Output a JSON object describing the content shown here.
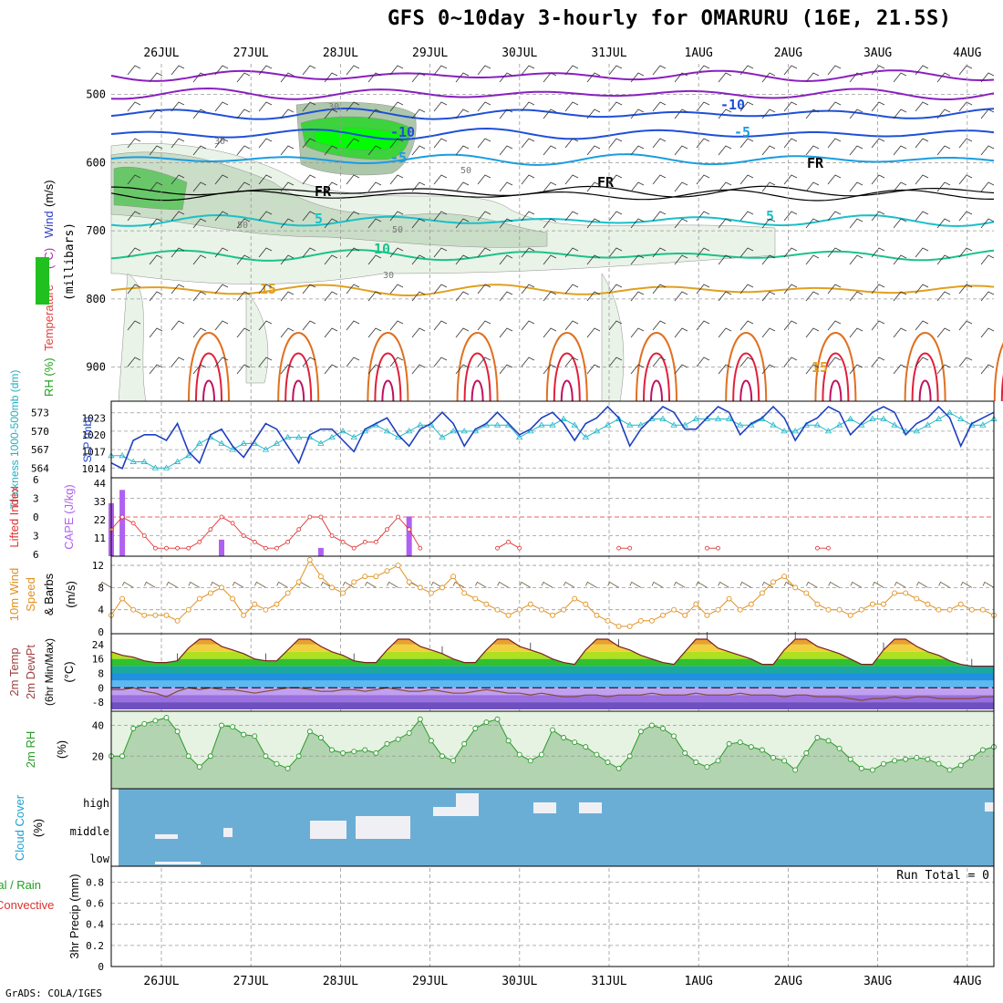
{
  "title": "GFS 0~10day 3-hourly for OMARURU (16E, 21.5S)",
  "credit": "GrADS: COLA/IGES",
  "dates": [
    "26JUL",
    "27JUL",
    "28JUL",
    "29JUL",
    "30JUL",
    "31JUL",
    "1AUG",
    "2AUG",
    "3AUG",
    "4AUG"
  ],
  "colors": {
    "temp_purple": "#8a1fc0",
    "temp_blue": "#1f4fd8",
    "temp_lightblue": "#1a9de0",
    "temp_cyan": "#19c0c8",
    "temp_teal": "#1bc28a",
    "temp_orange": "#e0a020",
    "temp_darkorange": "#e07020",
    "temp_red": "#e0203a",
    "slp": "#1f3fc0",
    "thickness": "#22b8c8",
    "li": "#e03030",
    "cape": "#b060f0",
    "wind": "#e09020",
    "rh2m": "#2a9a2a",
    "rh_fill": "#8fc08f",
    "cloud": "#6aaed6",
    "grid": "#999999"
  },
  "chart_data": [
    {
      "type": "heatmap",
      "name": "upper",
      "y_label": "Temperature (°C)Wind (m/s)",
      "y_label_parts": [
        {
          "text": "RH (%)",
          "color": "#20a020"
        },
        {
          "text": "Temperature",
          "color": "#e04040"
        },
        {
          "text": "(°C)",
          "color": "#b030b0"
        },
        {
          "text": "Wind",
          "color": "#3040c0"
        },
        {
          "text": "(m/s)",
          "color": "#000000"
        }
      ],
      "axis_label": "(millibars)",
      "y_ticks": [
        500,
        600,
        700,
        800,
        900
      ],
      "contour_labels": [
        "-10",
        "-10",
        "-5",
        "-5",
        "FR",
        "FR",
        "FR",
        "5",
        "5",
        "10",
        "15",
        "15",
        "30",
        "30",
        "50",
        "50",
        "50",
        "30"
      ]
    },
    {
      "type": "line",
      "name": "slp_thickness",
      "ylabel_left": "Thickness 1000-500mb (dm)",
      "ylabel_right": "SLP (mb)",
      "left_ticks": [
        564,
        567,
        570,
        573
      ],
      "right_ticks": [
        1014,
        1017,
        1020,
        1023
      ],
      "series": [
        {
          "name": "SLP",
          "values": [
            1015,
            1014,
            1019,
            1020,
            1020,
            1019,
            1022,
            1017,
            1015,
            1020,
            1021,
            1018,
            1016,
            1019,
            1022,
            1021,
            1018,
            1015,
            1020,
            1021,
            1021,
            1019,
            1017,
            1021,
            1022,
            1023,
            1020,
            1018,
            1021,
            1022,
            1024,
            1022,
            1018,
            1021,
            1022,
            1024,
            1022,
            1020,
            1021,
            1023,
            1024,
            1022,
            1019,
            1022,
            1023,
            1025,
            1023,
            1018,
            1021,
            1023,
            1025,
            1024,
            1021,
            1021,
            1023,
            1025,
            1024,
            1020,
            1022,
            1023,
            1025,
            1023,
            1019,
            1022,
            1023,
            1025,
            1024,
            1020,
            1022,
            1024,
            1025,
            1024,
            1020,
            1022,
            1023,
            1025,
            1023,
            1018,
            1022,
            1023,
            1024
          ]
        },
        {
          "name": "Thickness",
          "values": [
            566,
            566,
            565,
            565,
            564,
            564,
            565,
            566,
            568,
            569,
            568,
            567,
            568,
            568,
            567,
            568,
            569,
            569,
            569,
            568,
            569,
            570,
            569,
            570,
            571,
            570,
            569,
            570,
            571,
            571,
            569,
            570,
            570,
            570,
            571,
            571,
            571,
            569,
            570,
            571,
            571,
            572,
            571,
            569,
            570,
            571,
            572,
            571,
            571,
            572,
            572,
            571,
            571,
            572,
            572,
            572,
            572,
            571,
            571,
            572,
            571,
            570,
            570,
            571,
            571,
            570,
            571,
            572,
            571,
            572,
            572,
            571,
            570,
            570,
            571,
            572,
            573,
            572,
            571,
            571,
            572
          ]
        }
      ]
    },
    {
      "type": "bar",
      "name": "li_cape",
      "ylabel_left": "Lifted Index",
      "ylabel_right": "CAPE (J/kg)",
      "li_ticks": [
        6,
        3,
        0,
        -3,
        -6
      ],
      "cape_ticks": [
        11,
        22,
        33,
        44
      ],
      "li_values": [
        2,
        0,
        1,
        3,
        5,
        5,
        5,
        5,
        4,
        2,
        0,
        1,
        3,
        4,
        5,
        5,
        4,
        2,
        0,
        0,
        3,
        4,
        5,
        4,
        4,
        2,
        0,
        2,
        5,
        6,
        6,
        6,
        6,
        6,
        6,
        5,
        4,
        5,
        6,
        6,
        6,
        6,
        6,
        6,
        6,
        6,
        5,
        5,
        6,
        6,
        6,
        6,
        6,
        6,
        5,
        5,
        6,
        6,
        6,
        6,
        6,
        6,
        6,
        6,
        5,
        5,
        6,
        6,
        6,
        6,
        6,
        6,
        6,
        6,
        6,
        6,
        6,
        6,
        6,
        6,
        6
      ],
      "cape_values": [
        32,
        40,
        0,
        0,
        0,
        0,
        0,
        0,
        0,
        0,
        10,
        0,
        0,
        0,
        0,
        0,
        0,
        0,
        0,
        5,
        0,
        0,
        0,
        0,
        0,
        0,
        0,
        24,
        0,
        0,
        0,
        0,
        0,
        0,
        0,
        0,
        0,
        0,
        0,
        0,
        0,
        0,
        0,
        0,
        0,
        0,
        0,
        0,
        0,
        0,
        0,
        0,
        0,
        0,
        0,
        0,
        0,
        0,
        0,
        0,
        0,
        0,
        0,
        0,
        0,
        0,
        0,
        0,
        0,
        0,
        0,
        0,
        0,
        0,
        0,
        0,
        0,
        0,
        0,
        0,
        0
      ]
    },
    {
      "type": "line",
      "name": "wind10m",
      "ylabel": "10m Wind Speed & Barbs (m/s)",
      "y_ticks": [
        0,
        4,
        8,
        12
      ],
      "values": [
        3,
        6,
        4,
        3,
        3,
        3,
        2,
        4,
        6,
        7,
        8,
        6,
        3,
        5,
        4,
        5,
        7,
        9,
        13,
        10,
        8,
        7,
        9,
        10,
        10,
        11,
        12,
        9,
        8,
        7,
        8,
        10,
        7,
        6,
        5,
        4,
        3,
        4,
        5,
        4,
        3,
        4,
        6,
        5,
        3,
        2,
        1,
        1,
        2,
        2,
        3,
        4,
        3,
        5,
        3,
        4,
        6,
        4,
        5,
        7,
        9,
        10,
        8,
        7,
        5,
        4,
        4,
        3,
        4,
        5,
        5,
        7,
        7,
        6,
        5,
        4,
        4,
        5,
        4,
        4,
        3
      ]
    },
    {
      "type": "area",
      "name": "temp2m",
      "ylabel": "2m Temp 2m DewPt (6hr Min/Max) (°C)",
      "y_ticks": [
        -8,
        0,
        8,
        16,
        24
      ],
      "temp_values": [
        20,
        18,
        17,
        15,
        14,
        14,
        15,
        22,
        27,
        27,
        23,
        21,
        19,
        16,
        15,
        15,
        21,
        27,
        27,
        23,
        20,
        18,
        15,
        14,
        14,
        21,
        27,
        27,
        23,
        21,
        19,
        16,
        14,
        14,
        21,
        27,
        27,
        23,
        21,
        19,
        16,
        14,
        13,
        21,
        27,
        27,
        23,
        21,
        18,
        16,
        14,
        13,
        20,
        27,
        27,
        22,
        20,
        18,
        16,
        13,
        13,
        21,
        27,
        27,
        23,
        21,
        19,
        16,
        13,
        13,
        21,
        27,
        27,
        23,
        20,
        18,
        15,
        13,
        12,
        12,
        12
      ],
      "dewpt_values": [
        -1,
        -1,
        0,
        -2,
        -3,
        -5,
        -2,
        0,
        -1,
        0,
        -1,
        -1,
        -2,
        -3,
        -2,
        -1,
        0,
        0,
        -1,
        -2,
        -2,
        -1,
        -1,
        -2,
        -1,
        0,
        -1,
        -2,
        -2,
        -1,
        -2,
        -3,
        -3,
        -2,
        -1,
        -2,
        -3,
        -3,
        -4,
        -3,
        -4,
        -5,
        -5,
        -4,
        -4,
        -5,
        -4,
        -4,
        -4,
        -3,
        -4,
        -4,
        -4,
        -3,
        -4,
        -4,
        -4,
        -3,
        -4,
        -4,
        -4,
        -5,
        -4,
        -4,
        -5,
        -5,
        -5,
        -6,
        -7,
        -6,
        -6,
        -5,
        -6,
        -5,
        -5,
        -6,
        -6,
        -6,
        -6,
        -5,
        -5
      ]
    },
    {
      "type": "area",
      "name": "rh2m",
      "ylabel": "2m RH (%)",
      "y_ticks": [
        20,
        40
      ],
      "values": [
        20,
        20,
        38,
        41,
        43,
        45,
        36,
        20,
        13,
        20,
        40,
        39,
        34,
        33,
        20,
        15,
        12,
        20,
        36,
        32,
        24,
        22,
        23,
        24,
        22,
        28,
        31,
        35,
        44,
        30,
        20,
        17,
        28,
        38,
        42,
        44,
        30,
        21,
        17,
        21,
        37,
        32,
        29,
        26,
        21,
        16,
        12,
        20,
        36,
        40,
        38,
        33,
        22,
        16,
        13,
        17,
        28,
        29,
        26,
        24,
        19,
        17,
        11,
        22,
        32,
        30,
        25,
        18,
        12,
        11,
        15,
        17,
        18,
        19,
        18,
        15,
        11,
        14,
        19,
        24,
        26
      ]
    },
    {
      "type": "bar",
      "name": "cloud",
      "ylabel": "Cloud Cover (%)",
      "y_ticks": [
        "high",
        "middle",
        "low"
      ]
    },
    {
      "type": "bar",
      "name": "precip",
      "ylabel_left": "Total / Rain",
      "ylabel_right": "Convective",
      "ylabel": "3hr Precip (mm)",
      "y_ticks": [
        0,
        0.2,
        0.4,
        0.6,
        0.8
      ],
      "run_total": "Run Total = 0",
      "values": [
        0,
        0,
        0,
        0,
        0,
        0,
        0,
        0,
        0,
        0,
        0,
        0,
        0,
        0,
        0,
        0,
        0,
        0,
        0,
        0,
        0,
        0,
        0,
        0,
        0,
        0,
        0,
        0,
        0,
        0,
        0,
        0,
        0,
        0,
        0,
        0,
        0,
        0,
        0,
        0,
        0,
        0,
        0,
        0,
        0,
        0,
        0,
        0,
        0,
        0,
        0,
        0,
        0,
        0,
        0,
        0,
        0,
        0,
        0,
        0,
        0,
        0,
        0,
        0,
        0,
        0,
        0,
        0,
        0,
        0,
        0,
        0,
        0,
        0,
        0,
        0,
        0,
        0,
        0,
        0,
        0
      ]
    }
  ]
}
